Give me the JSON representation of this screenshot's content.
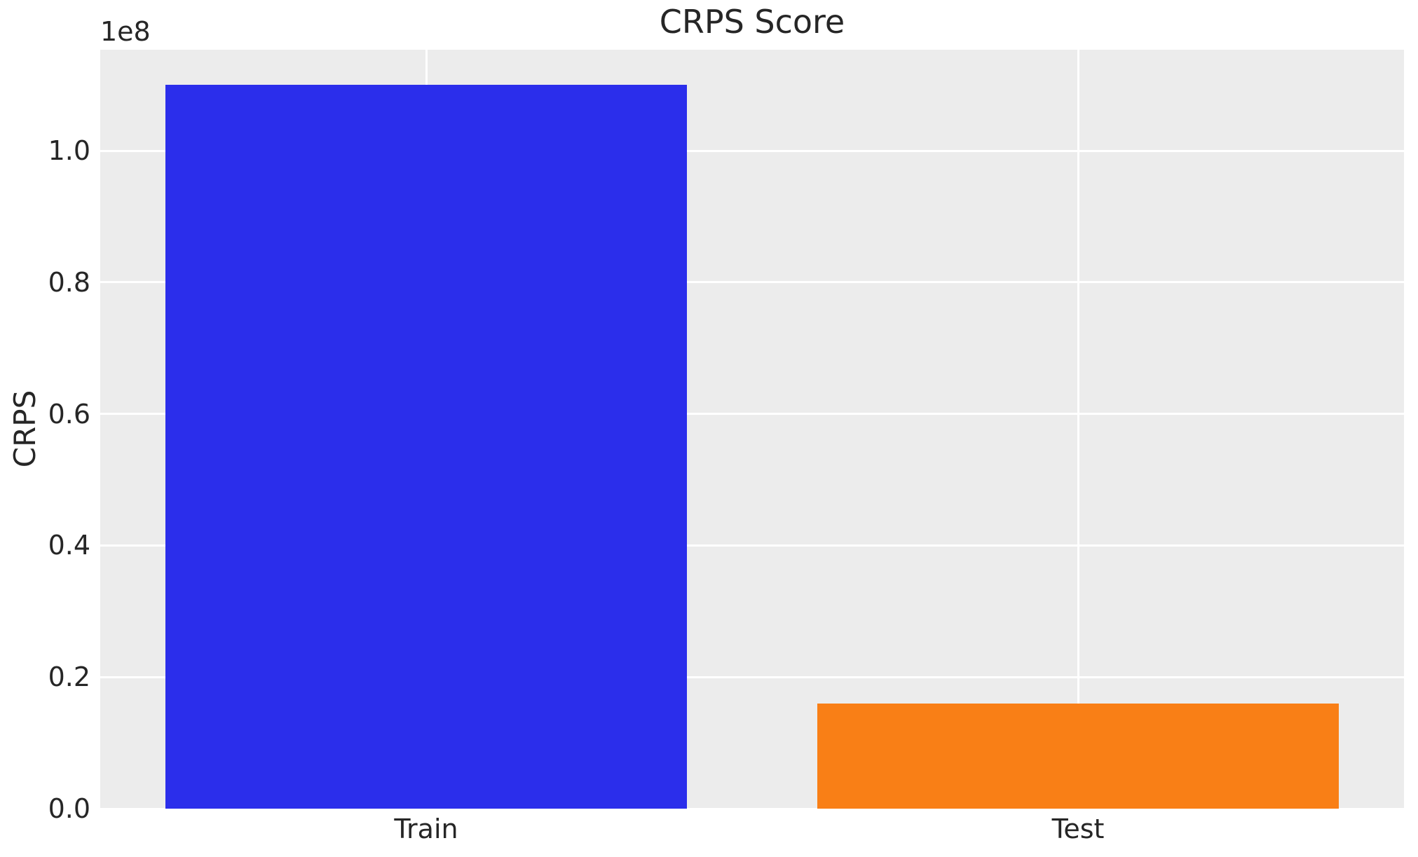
{
  "chart_data": {
    "type": "bar",
    "title": "CRPS Score",
    "ylabel": "CRPS",
    "xlabel": "",
    "y_offset_label": "1e8",
    "categories": [
      "Train",
      "Test"
    ],
    "values": [
      110000000,
      16000000
    ],
    "bar_colors": [
      "#2b2eeb",
      "#f97f16"
    ],
    "yticks": {
      "values": [
        0,
        20000000,
        40000000,
        60000000,
        80000000,
        100000000
      ],
      "labels": [
        "0.0",
        "0.2",
        "0.4",
        "0.6",
        "0.8",
        "1.0"
      ]
    },
    "ylim": [
      0,
      115350000
    ],
    "grid": true,
    "legend": null,
    "plot_bg_color": "#ececec",
    "grid_color": "#ffffff",
    "text_color": "#262626",
    "figure_bg_color": "#ffffff"
  }
}
